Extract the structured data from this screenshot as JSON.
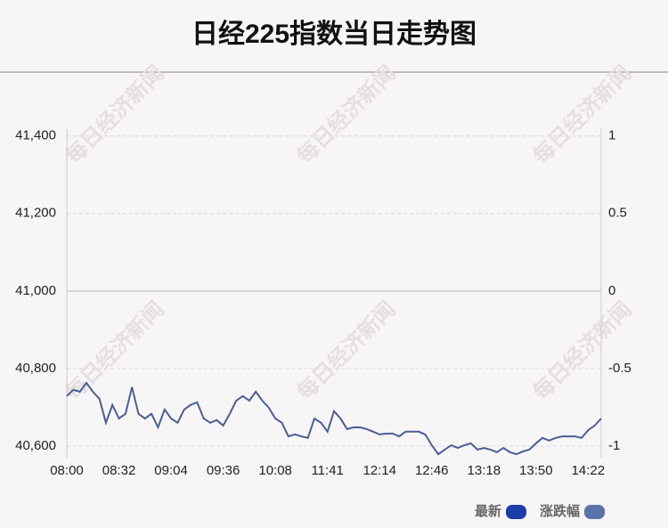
{
  "chart_data": {
    "type": "line",
    "title": "日经225指数当日走势图",
    "watermark": "每日经济新闻",
    "categories": [
      "08:00",
      null,
      null,
      null,
      null,
      null,
      null,
      null,
      "08:32",
      null,
      null,
      null,
      null,
      null,
      null,
      null,
      "09:04",
      null,
      null,
      null,
      null,
      null,
      null,
      null,
      "09:36",
      null,
      null,
      null,
      null,
      null,
      null,
      null,
      "10:08",
      null,
      null,
      null,
      null,
      null,
      null,
      null,
      "11:41",
      null,
      null,
      null,
      null,
      null,
      null,
      null,
      "12:14",
      null,
      null,
      null,
      null,
      null,
      null,
      null,
      "12:46",
      null,
      null,
      null,
      null,
      null,
      null,
      null,
      "13:18",
      null,
      null,
      null,
      null,
      null,
      null,
      null,
      "13:50",
      null,
      null,
      null,
      null,
      null,
      null,
      null,
      "14:22",
      null,
      null
    ],
    "series": [
      {
        "name": "最新",
        "color": "#4a5f92",
        "values": [
          40729,
          40745,
          40740,
          40763,
          40740,
          40722,
          40660,
          40706,
          40671,
          40683,
          40752,
          40683,
          40671,
          40683,
          40648,
          40694,
          40671,
          40660,
          40694,
          40706,
          40713,
          40671,
          40660,
          40667,
          40653,
          40683,
          40717,
          40729,
          40717,
          40740,
          40717,
          40699,
          40671,
          40660,
          40625,
          40630,
          40625,
          40621,
          40671,
          40660,
          40637,
          40690,
          40671,
          40644,
          40648,
          40648,
          40644,
          40637,
          40630,
          40632,
          40632,
          40625,
          40637,
          40637,
          40637,
          40630,
          40602,
          40579,
          40591,
          40602,
          40595,
          40602,
          40607,
          40591,
          40595,
          40591,
          40584,
          40595,
          40584,
          40579,
          40586,
          40591,
          40607,
          40621,
          40614,
          40621,
          40625,
          40625,
          40625,
          40621,
          40641,
          40653,
          40671
        ]
      }
    ],
    "legend": [
      {
        "name": "最新",
        "color": "#1a3ea6"
      },
      {
        "name": "涨跌幅",
        "color": "#5b72a6"
      }
    ],
    "ylim": [
      40570,
      41420
    ],
    "yticks": [
      {
        "value": 40600,
        "label": "40,600"
      },
      {
        "value": 40800,
        "label": "40,800"
      },
      {
        "value": 41000,
        "label": "41,000"
      },
      {
        "value": 41200,
        "label": "41,200"
      },
      {
        "value": 41400,
        "label": "41,400"
      }
    ],
    "y2lim": [
      -1.075,
      1.05
    ],
    "y2ticks": [
      -1,
      -0.5,
      0,
      0.5,
      1
    ],
    "grid": true
  }
}
